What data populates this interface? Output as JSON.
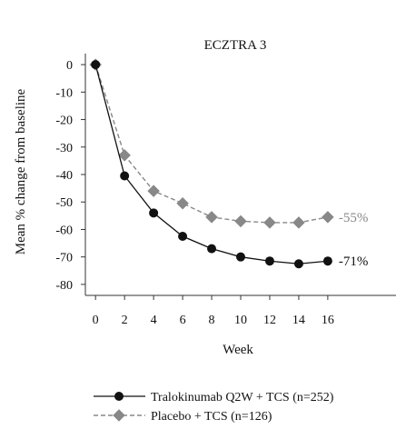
{
  "chart_data": {
    "type": "line",
    "title": "ECZTRA 3",
    "xlabel": "Week",
    "ylabel": "Mean % change from baseline",
    "x": [
      0,
      2,
      4,
      6,
      8,
      10,
      12,
      14,
      16
    ],
    "xlim": [
      -0.7,
      20.7
    ],
    "ylim": [
      -84,
      4
    ],
    "yticks": [
      0,
      -10,
      -20,
      -30,
      -40,
      -50,
      -60,
      -70,
      -80
    ],
    "grid": false,
    "legend_position": "bottom",
    "series": [
      {
        "name": "Tralokinumab Q2W + TCS (n=252)",
        "values": [
          0,
          -40.5,
          -54,
          -62.5,
          -67,
          -70,
          -71.5,
          -72.5,
          -71.5
        ],
        "color": "#111111",
        "line_style": "solid",
        "marker": "circle",
        "end_label": "-71%"
      },
      {
        "name": "Placebo + TCS (n=126)",
        "values": [
          0,
          -33,
          -46,
          -50.5,
          -55.5,
          -57,
          -57.5,
          -57.5,
          -55.5
        ],
        "color": "#888888",
        "line_style": "dashed",
        "marker": "diamond",
        "end_label": "-55%"
      }
    ]
  }
}
